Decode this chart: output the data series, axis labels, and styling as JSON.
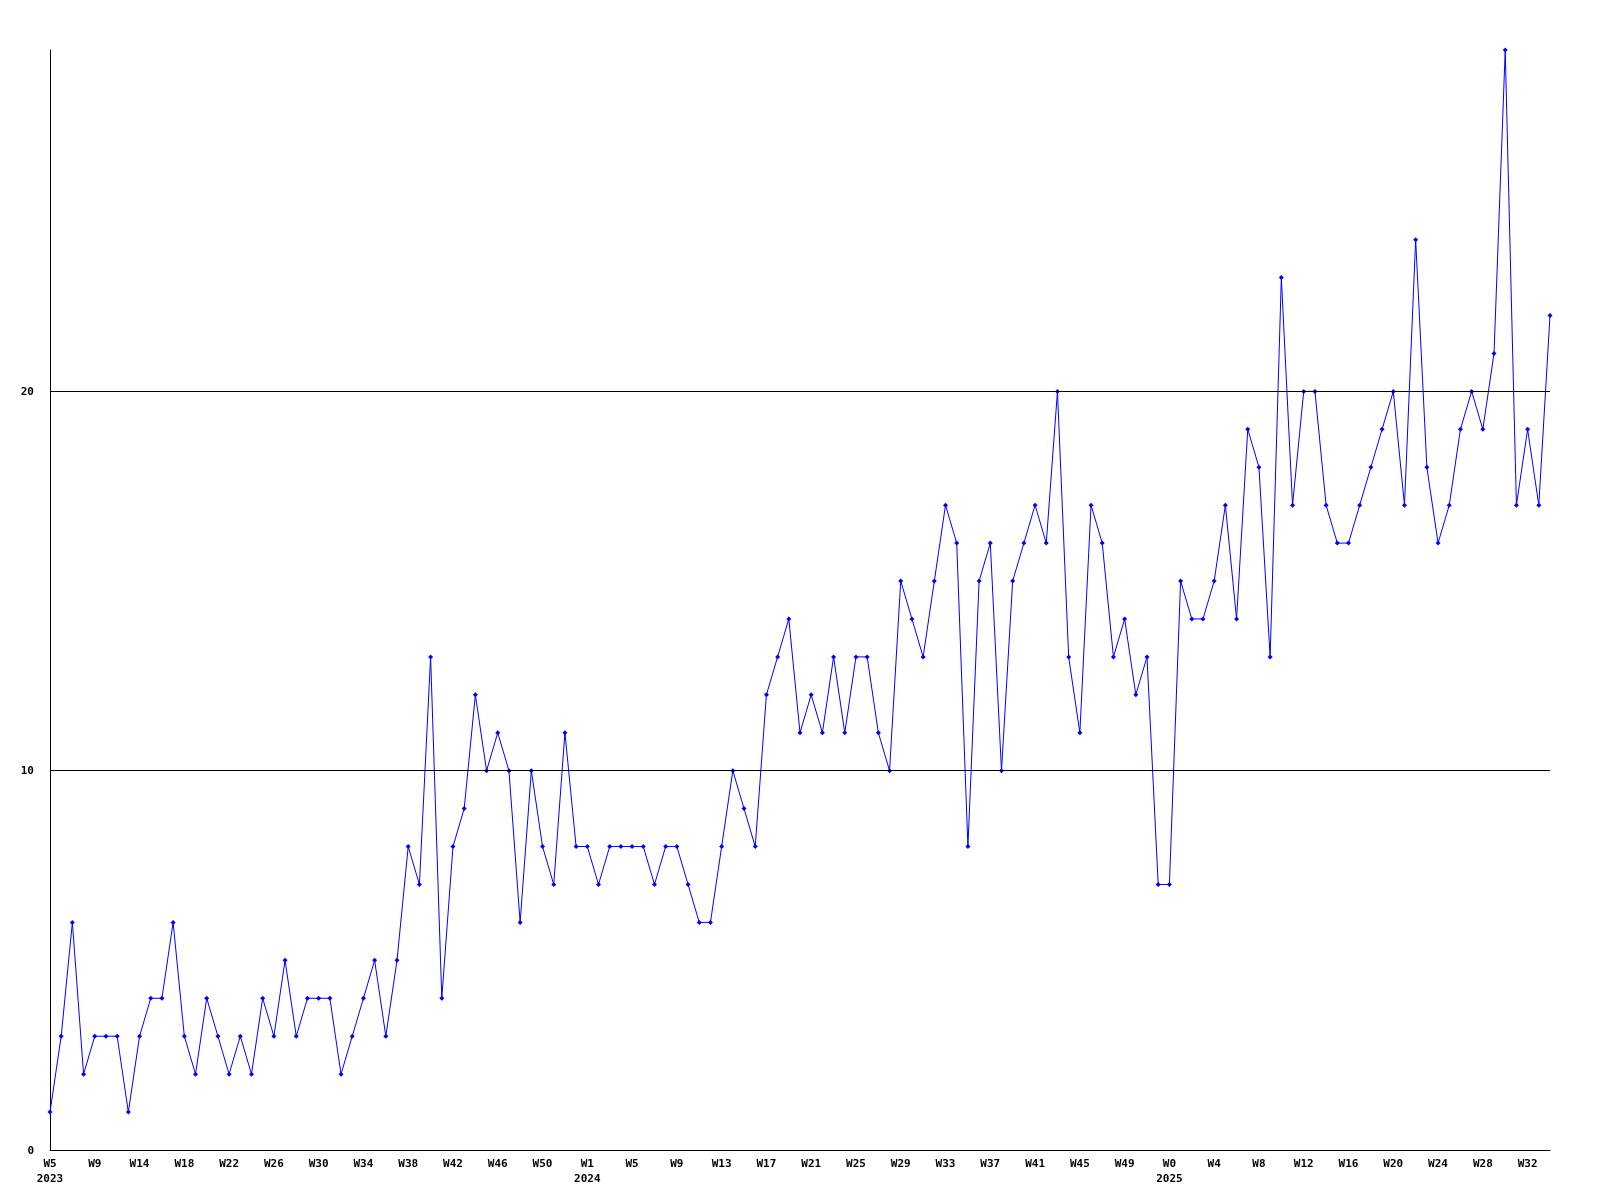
{
  "chart_data": {
    "type": "line",
    "categories": [
      "W5\n2023",
      null,
      null,
      null,
      "W9",
      null,
      null,
      null,
      "W14",
      null,
      null,
      null,
      "W18",
      null,
      null,
      null,
      "W22",
      null,
      null,
      null,
      "W26",
      null,
      null,
      null,
      "W30",
      null,
      null,
      null,
      "W34",
      null,
      null,
      null,
      "W38",
      null,
      null,
      null,
      "W42",
      null,
      null,
      null,
      "W46",
      null,
      null,
      null,
      "W50",
      null,
      null,
      null,
      "W1\n2024",
      null,
      null,
      null,
      "W5",
      null,
      null,
      null,
      "W9",
      null,
      null,
      null,
      "W13",
      null,
      null,
      null,
      "W17",
      null,
      null,
      null,
      "W21",
      null,
      null,
      null,
      "W25",
      null,
      null,
      null,
      "W29",
      null,
      null,
      null,
      "W33",
      null,
      null,
      null,
      "W37",
      null,
      null,
      null,
      "W41",
      null,
      null,
      null,
      "W45",
      null,
      null,
      null,
      "W49",
      null,
      null,
      null,
      "W0\n2025",
      null,
      null,
      null,
      "W4",
      null,
      null,
      null,
      "W8",
      null,
      null,
      null,
      "W12",
      null,
      null,
      null,
      "W16",
      null,
      null,
      null,
      "W20",
      null,
      null,
      null,
      "W24",
      null,
      null,
      null,
      "W28",
      null,
      null,
      null,
      "W32",
      null,
      null
    ],
    "series": [
      {
        "color": "#0000ff",
        "values": [
          1,
          3,
          6,
          2,
          3,
          3,
          3,
          1,
          3,
          4,
          4,
          6,
          3,
          2,
          4,
          3,
          2,
          3,
          2,
          4,
          3,
          5,
          3,
          4,
          4,
          4,
          2,
          3,
          4,
          5,
          3,
          5,
          8,
          7,
          13,
          4,
          8,
          9,
          12,
          10,
          11,
          10,
          6,
          10,
          8,
          7,
          11,
          8,
          8,
          7,
          8,
          8,
          8,
          8,
          7,
          8,
          8,
          7,
          6,
          6,
          8,
          10,
          9,
          8,
          12,
          13,
          14,
          11,
          12,
          11,
          13,
          11,
          13,
          13,
          11,
          10,
          15,
          14,
          13,
          15,
          17,
          16,
          8,
          15,
          16,
          10,
          15,
          16,
          17,
          16,
          20,
          13,
          11,
          17,
          16,
          13,
          14,
          12,
          13,
          7,
          7,
          15,
          14,
          14,
          15,
          17,
          14,
          19,
          18,
          13,
          23,
          17,
          20,
          20,
          17,
          16,
          16,
          17,
          18,
          19,
          20,
          17,
          24,
          18,
          16,
          17,
          19,
          20,
          19,
          21,
          29,
          17,
          19,
          17,
          22
        ]
      }
    ],
    "ylim": [
      0,
      29
    ],
    "yticks": [
      0,
      10,
      20
    ],
    "grid": "y",
    "marker": "diamond",
    "line_style": "solid"
  }
}
